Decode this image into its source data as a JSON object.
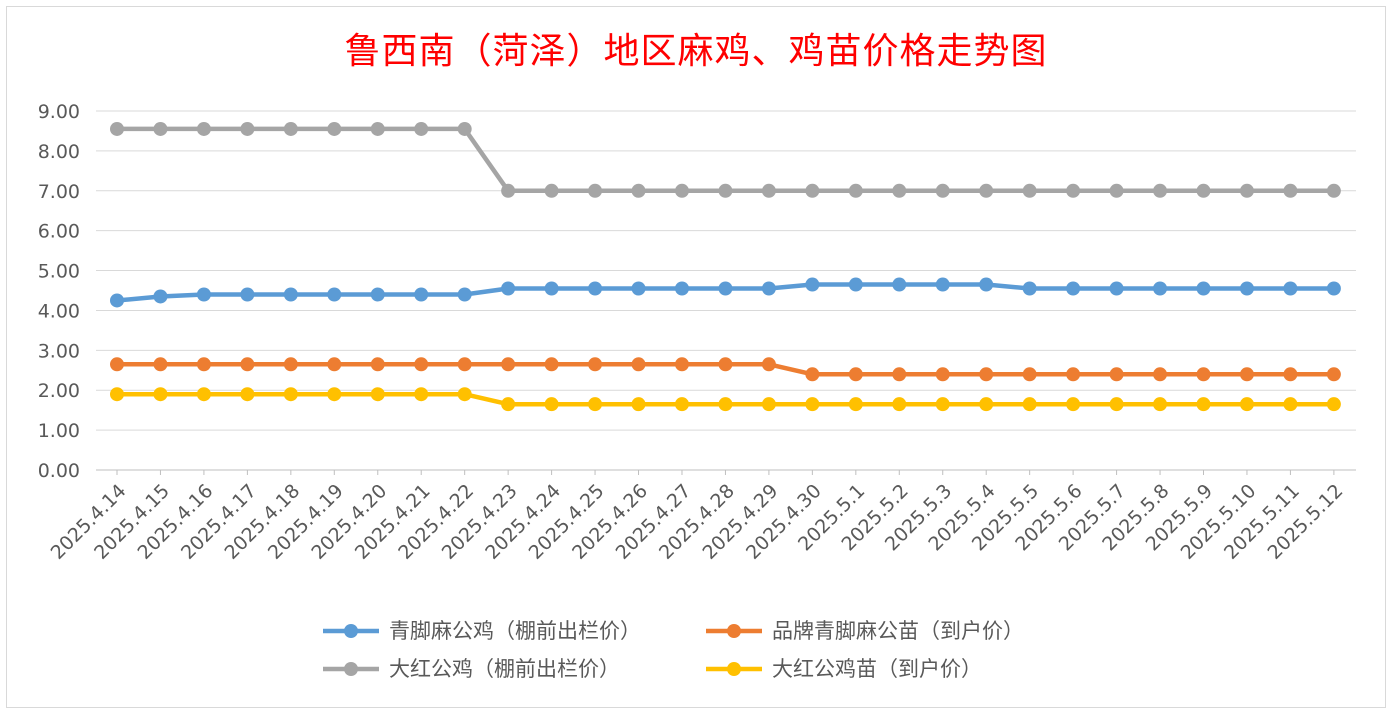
{
  "chart_data": {
    "type": "line",
    "title": "鲁西南（菏泽）地区麻鸡、鸡苗价格走势图",
    "xlabel": "",
    "ylabel": "",
    "ylim": [
      0,
      9
    ],
    "ytick_labels": [
      "0.00",
      "1.00",
      "2.00",
      "3.00",
      "4.00",
      "5.00",
      "6.00",
      "7.00",
      "8.00",
      "9.00"
    ],
    "grid": true,
    "legend_position": "bottom",
    "categories": [
      "2025.4.14",
      "2025.4.15",
      "2025.4.16",
      "2025.4.17",
      "2025.4.18",
      "2025.4.19",
      "2025.4.20",
      "2025.4.21",
      "2025.4.22",
      "2025.4.23",
      "2025.4.24",
      "2025.4.25",
      "2025.4.26",
      "2025.4.27",
      "2025.4.28",
      "2025.4.29",
      "2025.4.30",
      "2025.5.1",
      "2025.5.2",
      "2025.5.3",
      "2025.5.4",
      "2025.5.5",
      "2025.5.6",
      "2025.5.7",
      "2025.5.8",
      "2025.5.9",
      "2025.5.10",
      "2025.5.11",
      "2025.5.12"
    ],
    "series": [
      {
        "name": "青脚麻公鸡（棚前出栏价）",
        "color": "#5b9bd5",
        "values": [
          4.25,
          4.35,
          4.4,
          4.4,
          4.4,
          4.4,
          4.4,
          4.4,
          4.4,
          4.55,
          4.55,
          4.55,
          4.55,
          4.55,
          4.55,
          4.55,
          4.65,
          4.65,
          4.65,
          4.65,
          4.65,
          4.55,
          4.55,
          4.55,
          4.55,
          4.55,
          4.55,
          4.55,
          4.55
        ]
      },
      {
        "name": "品牌青脚麻公苗（到户价）",
        "color": "#ed7d31",
        "values": [
          2.65,
          2.65,
          2.65,
          2.65,
          2.65,
          2.65,
          2.65,
          2.65,
          2.65,
          2.65,
          2.65,
          2.65,
          2.65,
          2.65,
          2.65,
          2.65,
          2.4,
          2.4,
          2.4,
          2.4,
          2.4,
          2.4,
          2.4,
          2.4,
          2.4,
          2.4,
          2.4,
          2.4,
          2.4
        ]
      },
      {
        "name": "大红公鸡（棚前出栏价）",
        "color": "#a5a5a5",
        "values": [
          8.55,
          8.55,
          8.55,
          8.55,
          8.55,
          8.55,
          8.55,
          8.55,
          8.55,
          7.0,
          7.0,
          7.0,
          7.0,
          7.0,
          7.0,
          7.0,
          7.0,
          7.0,
          7.0,
          7.0,
          7.0,
          7.0,
          7.0,
          7.0,
          7.0,
          7.0,
          7.0,
          7.0,
          7.0
        ]
      },
      {
        "name": "大红公鸡苗（到户价）",
        "color": "#ffc000",
        "values": [
          1.9,
          1.9,
          1.9,
          1.9,
          1.9,
          1.9,
          1.9,
          1.9,
          1.9,
          1.65,
          1.65,
          1.65,
          1.65,
          1.65,
          1.65,
          1.65,
          1.65,
          1.65,
          1.65,
          1.65,
          1.65,
          1.65,
          1.65,
          1.65,
          1.65,
          1.65,
          1.65,
          1.65,
          1.65
        ]
      }
    ]
  }
}
